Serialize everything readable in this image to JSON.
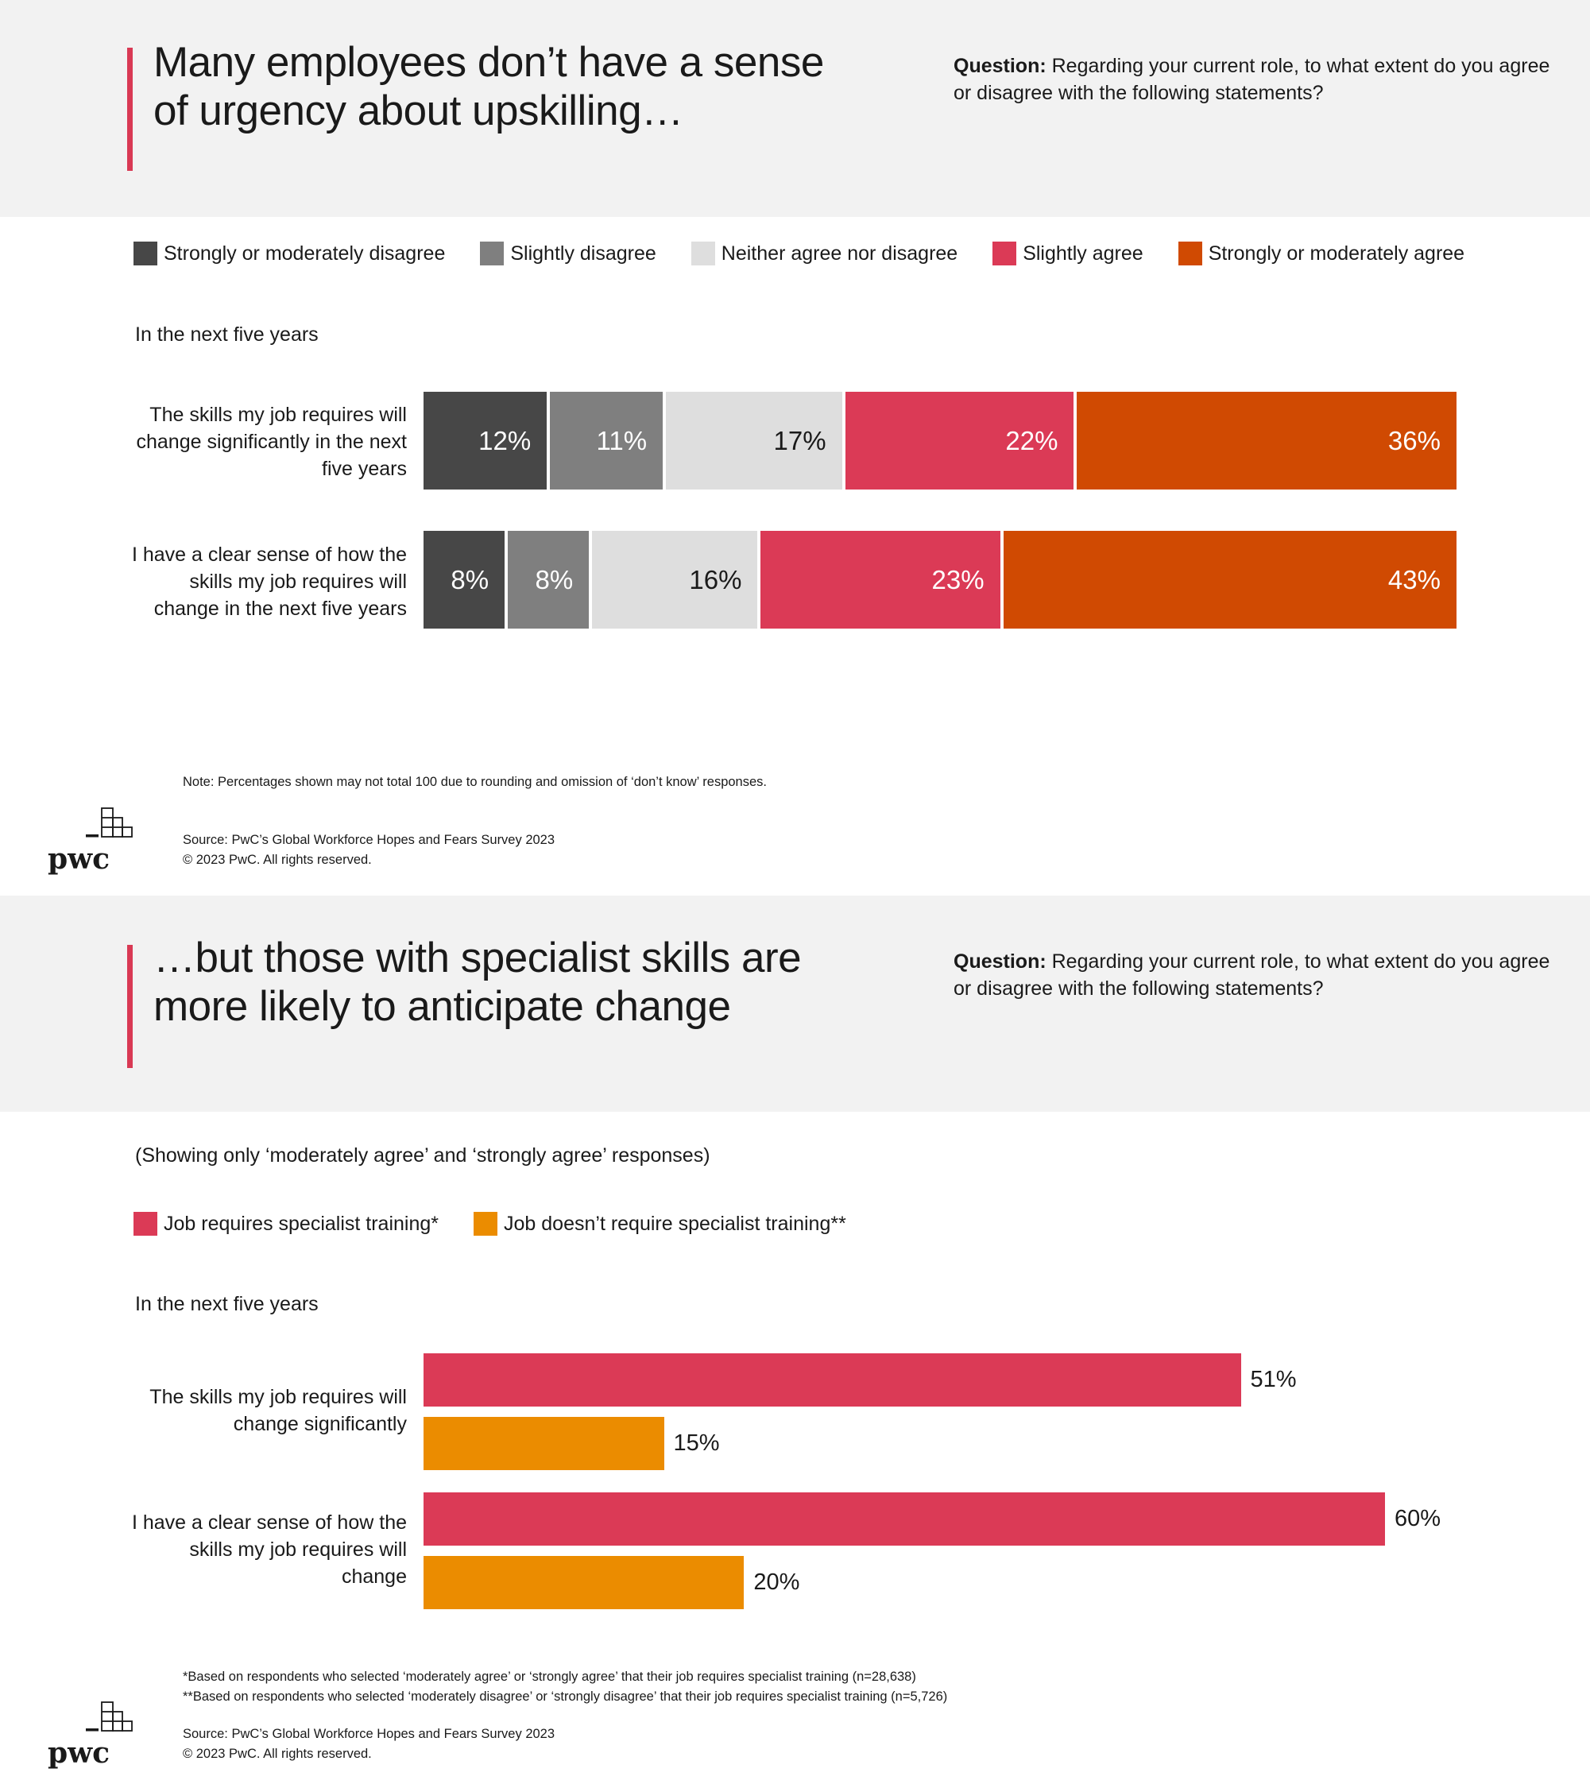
{
  "panel1": {
    "title_line1": "Many employees don’t have a sense",
    "title_line2": "of urgency about upskilling…",
    "question_bold": "Question:",
    "question_text": " Regarding your current role, to what extent do you agree or disagree with the following statements?",
    "legend": [
      {
        "label": "Strongly or moderately disagree",
        "color": "#474747"
      },
      {
        "label": "Slightly disagree",
        "color": "#7f7f7f"
      },
      {
        "label": "Neither agree nor disagree",
        "color": "#dedede"
      },
      {
        "label": "Slightly agree",
        "color": "#db3a56"
      },
      {
        "label": "Strongly or moderately agree",
        "color": "#d04a02"
      }
    ],
    "sub_label": "In the next five years",
    "rows": [
      {
        "label_lines": [
          "The skills my job requires will",
          "change significantly in the next",
          "five years"
        ]
      },
      {
        "label_lines": [
          "I have a clear sense of how the",
          "skills my job requires will",
          "change in the next five years"
        ]
      }
    ],
    "note": "Note: Percentages shown may not total 100 due to rounding and omission of ‘don’t know’ responses.",
    "source": "Source: PwC’s Global Workforce Hopes and Fears Survey 2023",
    "copyright": "© 2023 PwC. All rights reserved."
  },
  "panel2": {
    "title_line1": "…but those with specialist skills are",
    "title_line2": "more likely to anticipate change",
    "question_bold": "Question:",
    "question_text": " Regarding your current role, to what extent do you agree or disagree with the following statements?",
    "showing": "(Showing only ‘moderately agree’ and ‘strongly agree’ responses)",
    "legend": [
      {
        "label": "Job requires specialist training*",
        "color": "#db3a56"
      },
      {
        "label": "Job doesn’t require specialist training**",
        "color": "#eb8c00"
      }
    ],
    "sub_label": "In the next five years",
    "rows": [
      {
        "label_lines": [
          "The skills my job requires will",
          "change significantly"
        ]
      },
      {
        "label_lines": [
          "I have a clear sense of how the",
          "skills my job requires will",
          "change"
        ]
      }
    ],
    "footnote1": "*Based on respondents who selected ‘moderately agree’ or ‘strongly agree’ that their job requires specialist training (n=28,638)",
    "footnote2": "**Based on respondents who selected ‘moderately disagree’ or ‘strongly disagree’ that their job requires specialist training (n=5,726)",
    "source": "Source: PwC’s Global Workforce Hopes and Fears Survey 2023",
    "copyright": "© 2023 PwC. All rights reserved."
  },
  "logo_text": "pwc",
  "chart_data": [
    {
      "type": "bar",
      "stacked": true,
      "orientation": "horizontal",
      "categories": [
        "The skills my job requires will change significantly in the next five years",
        "I have a clear sense of how the skills my job requires will change in the next five years"
      ],
      "series": [
        {
          "name": "Strongly or moderately disagree",
          "values": [
            12,
            8
          ],
          "labels": [
            "12%",
            "8%"
          ],
          "color": "#474747",
          "text_color": "#ffffff"
        },
        {
          "name": "Slightly disagree",
          "values": [
            11,
            8
          ],
          "labels": [
            "11%",
            "8%"
          ],
          "color": "#7f7f7f",
          "text_color": "#ffffff"
        },
        {
          "name": "Neither agree nor disagree",
          "values": [
            17,
            16
          ],
          "labels": [
            "17%",
            "16%"
          ],
          "color": "#dedede",
          "text_color": "#1a1a1a"
        },
        {
          "name": "Slightly agree",
          "values": [
            22,
            23
          ],
          "labels": [
            "22%",
            "23%"
          ],
          "color": "#db3a56",
          "text_color": "#ffffff"
        },
        {
          "name": "Strongly or moderately agree",
          "values": [
            36,
            43
          ],
          "labels": [
            "36%",
            "43%"
          ],
          "color": "#d04a02",
          "text_color": "#ffffff"
        }
      ]
    },
    {
      "type": "bar",
      "orientation": "horizontal",
      "categories": [
        "The skills my job requires will change significantly",
        "I have a clear sense of how the skills my job requires will change"
      ],
      "series": [
        {
          "name": "Job requires specialist training*",
          "values": [
            51,
            60
          ],
          "labels": [
            "51%",
            "60%"
          ],
          "color": "#db3a56"
        },
        {
          "name": "Job doesn’t require specialist training**",
          "values": [
            15,
            20
          ],
          "labels": [
            "15%",
            "20%"
          ],
          "color": "#eb8c00"
        }
      ]
    }
  ]
}
